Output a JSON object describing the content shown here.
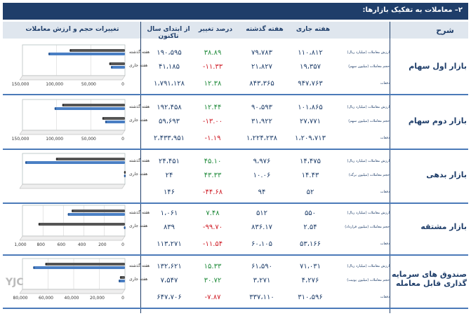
{
  "page_title": "۲– معاملات به تفکیک بازارها:",
  "headers": {
    "sharh": "شرح",
    "current": "هفته جاری",
    "previous": "هفته گذشته",
    "change": "درصد تغییر",
    "ytd": "از ابتدای سال تاکنون",
    "chart": "تغییرات حجم و ارزش معاملات"
  },
  "colors": {
    "current": "#4a7fc4",
    "previous": "#555555",
    "pos": "#1f8a3a",
    "neg": "#d0202a"
  },
  "rows": [
    {
      "name": "بازار اول سهام",
      "subs": [
        "ارزش معاملات (میلیارد ریال)",
        "حجم معاملات (میلیون سهم)",
        "دفعات"
      ],
      "current": [
        "۱۱۰،۸۱۲",
        "۱۹،۳۵۷",
        "۹۴۷،۷۶۳"
      ],
      "previous": [
        "۷۹،۷۸۳",
        "۲۱،۸۲۷",
        "۸۴۳،۳۶۵"
      ],
      "change": [
        "۳۸.۸۹",
        "-۱۱.۳۳",
        "۱۲.۳۸"
      ],
      "ytd": [
        "۱۹۰،۵۹۵",
        "۴۱،۱۸۵",
        "۱،۷۹۱،۱۲۸"
      ]
    },
    {
      "name": "بازار دوم سهام",
      "subs": [
        "ارزش معاملات (میلیارد ریال)",
        "حجم معاملات (میلیون سهم)",
        "دفعات"
      ],
      "current": [
        "۱۰۱،۸۶۵",
        "۲۷،۷۷۱",
        "۱،۲۰۹،۷۱۳"
      ],
      "previous": [
        "۹۰،۵۹۳",
        "۳۱،۹۲۲",
        "۱،۲۲۴،۲۳۸"
      ],
      "change": [
        "۱۲.۴۴",
        "-۱۳.۰۰",
        "-۱.۱۹"
      ],
      "ytd": [
        "۱۹۲،۴۵۸",
        "۵۹،۶۹۳",
        "۲،۴۳۳،۹۵۱"
      ]
    },
    {
      "name": "بازار بدهی",
      "subs": [
        "ارزش معاملات (میلیارد ریال)",
        "حجم معاملات (میلیون برگه)",
        "دفعات"
      ],
      "current": [
        "۱۴،۴۷۵",
        "۱۴.۴۳",
        "۵۲"
      ],
      "previous": [
        "۹،۹۷۶",
        "۱۰.۰۶",
        "۹۴"
      ],
      "change": [
        "۴۵.۱۰",
        "۴۳.۳۳",
        "-۴۴.۶۸"
      ],
      "ytd": [
        "۲۴،۴۵۱",
        "۲۴",
        "۱۴۶"
      ]
    },
    {
      "name": "بازار مشتقه",
      "subs": [
        "ارزش معاملات (میلیارد ریال)",
        "حجم معاملات (میلیون قرارداد)",
        "دفعات"
      ],
      "current": [
        "۵۵۰",
        "۲.۵۴",
        "۵۳،۱۶۶"
      ],
      "previous": [
        "۵۱۲",
        "۸۳۶.۱۷",
        "۶۰،۱۰۵"
      ],
      "change": [
        "۷.۴۸",
        "-۹۹.۷۰",
        "-۱۱.۵۴"
      ],
      "ytd": [
        "۱،۰۶۱",
        "۸۳۹",
        "۱۱۳،۲۷۱"
      ]
    },
    {
      "name": "صندوق های سرمایه گذاری قابل معامله",
      "subs": [
        "ارزش معاملات (میلیارد ریال)",
        "حجم معاملات (میلیون یونیت)",
        "دفعات"
      ],
      "current": [
        "۷۱،۰۳۱",
        "۴،۲۷۶",
        "۳۱۰،۵۹۶"
      ],
      "previous": [
        "۶۱،۵۹۰",
        "۳،۲۷۱",
        "۳۳۷،۱۱۰"
      ],
      "change": [
        "۱۵.۳۳",
        "۳۰.۷۲",
        "-۷.۸۷"
      ],
      "ytd": [
        "۱۳۲،۶۲۱",
        "۷،۵۴۷",
        "۶۴۷،۷۰۶"
      ]
    }
  ],
  "chart_data": [
    {
      "type": "bar",
      "categories": [
        "هفته گذشته",
        "هفته جاری"
      ],
      "series": [
        {
          "values": [
            79783,
            21827
          ]
        },
        {
          "values": [
            110812,
            19357
          ]
        }
      ],
      "xticks": [
        "150,000",
        "100,000",
        "50,000",
        "0"
      ],
      "xlim": [
        0,
        150000
      ]
    },
    {
      "type": "bar",
      "categories": [
        "هفته گذشته",
        "هفته جاری"
      ],
      "series": [
        {
          "values": [
            90593,
            31922
          ]
        },
        {
          "values": [
            101865,
            27771
          ]
        }
      ],
      "xticks": [
        "150,000",
        "100,000",
        "50,000",
        "0"
      ],
      "xlim": [
        0,
        150000
      ]
    },
    {
      "type": "bar",
      "categories": [
        "هفته گذشته",
        "هفته جاری"
      ],
      "series": [
        {
          "values": [
            9976,
            10.06
          ]
        },
        {
          "values": [
            14475,
            14.43
          ]
        }
      ],
      "xticks": [],
      "xlim": [
        0,
        15000
      ]
    },
    {
      "type": "bar",
      "categories": [
        "هفته گذشته",
        "هفته جاری"
      ],
      "series": [
        {
          "values": [
            512,
            836.17
          ]
        },
        {
          "values": [
            550,
            2.54
          ]
        }
      ],
      "xticks": [
        "1,000",
        "800",
        "600",
        "400",
        "200",
        "0"
      ],
      "xlim": [
        0,
        1000
      ]
    },
    {
      "type": "bar",
      "categories": [
        "هفته گذشته",
        "هفته جاری"
      ],
      "series": [
        {
          "values": [
            61590,
            3271
          ]
        },
        {
          "values": [
            71031,
            4276
          ]
        }
      ],
      "xticks": [
        "80,000",
        "60,000",
        "40,000",
        "20,000",
        "0"
      ],
      "xlim": [
        0,
        80000
      ]
    }
  ],
  "logo_text": "YJC"
}
